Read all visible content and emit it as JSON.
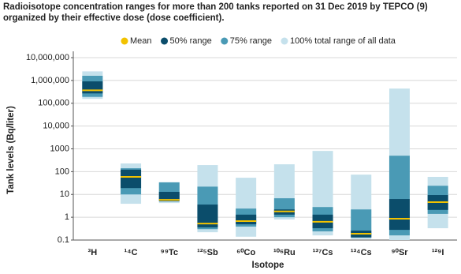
{
  "chart_data": {
    "type": "range",
    "title": [
      "Radioisotope concentration ranges for more than 200 tanks reported on 31 Dec 2019 by TEPCO (9)",
      "organized by their effective dose (dose coefficient)."
    ],
    "y_label": "Tank levels (Bq/liter)",
    "x_label": "Isotope",
    "log_y": true,
    "grid": true,
    "legend": "top",
    "categories": [
      "³H",
      "¹⁴C",
      "⁹⁹Tc",
      "¹²⁵Sb",
      "⁶⁰Co",
      "¹⁰⁶Ru",
      "¹³⁷Cs",
      "¹³⁴Cs",
      "⁹⁰Sr",
      "¹²⁹I"
    ],
    "ylim": [
      0.1,
      10000000
    ],
    "yticks": [
      0.1,
      1,
      10,
      100,
      1000,
      {
        "value": 10000,
        "label": "10,000"
      },
      {
        "value": 100000,
        "label": "100,000"
      },
      {
        "value": 1000000,
        "label": "1,000,000"
      },
      {
        "value": 10000000,
        "label": "10,000,000"
      }
    ],
    "series": [
      {
        "name": "Mean",
        "color": "#f2c200",
        "values": [
          370000,
          59,
          5.8,
          0.53,
          0.68,
          1.8,
          0.63,
          0.19,
          0.86,
          4.6
        ]
      },
      {
        "name": "50% range",
        "color": "#0b4d6b",
        "low": [
          270000,
          19,
          5,
          0.36,
          0.49,
          1.3,
          0.33,
          0.13,
          0.28,
          2.1
        ],
        "high": [
          910000,
          122,
          13,
          3.6,
          1.3,
          2.2,
          1.3,
          0.26,
          6.3,
          9.4
        ]
      },
      {
        "name": "75% range",
        "color": "#4a9ab5",
        "low": [
          190000,
          10,
          6.3,
          0.3,
          0.39,
          1.0,
          0.24,
          0.13,
          0.16,
          1.4
        ],
        "high": [
          1600000,
          141,
          34,
          22,
          2.4,
          6.8,
          2.8,
          2.2,
          500,
          24
        ]
      },
      {
        "name": "100% total range of all data",
        "color": "#c5e1ec",
        "low": [
          156000,
          3.9,
          4.2,
          0.22,
          0.14,
          0.8,
          0.16,
          0.11,
          0.1,
          0.33
        ],
        "high": [
          2500000,
          229,
          34,
          194,
          54,
          210,
          810,
          74,
          440000,
          59
        ]
      }
    ]
  }
}
